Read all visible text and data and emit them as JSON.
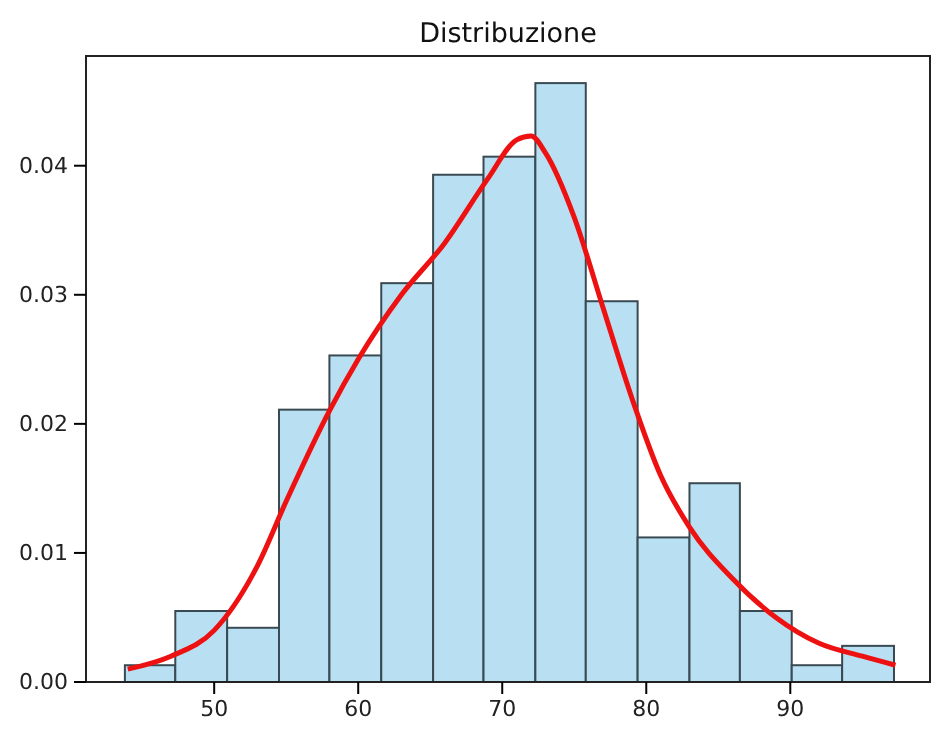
{
  "chart_data": {
    "type": "histogram",
    "title": "Distribuzione",
    "bins": [
      43.8,
      47.3,
      50.9,
      54.5,
      58.0,
      61.6,
      65.2,
      68.7,
      72.3,
      75.8,
      79.4,
      83.0,
      86.5,
      90.1,
      93.6,
      97.2
    ],
    "values": [
      0.0013,
      0.0055,
      0.0042,
      0.0211,
      0.0253,
      0.0309,
      0.0393,
      0.0407,
      0.0464,
      0.0295,
      0.0112,
      0.0154,
      0.0055,
      0.0013,
      0.0028
    ],
    "color": "#b8e0f2",
    "series": [
      {
        "type": "line",
        "color": "#ee1111",
        "x": [
          44,
          47,
          50,
          53,
          55,
          58,
          60,
          63,
          66,
          69,
          71,
          72,
          73,
          75,
          77,
          79,
          81,
          83,
          86,
          89,
          92,
          95,
          97.3
        ],
        "values": [
          0.001,
          0.002,
          0.004,
          0.009,
          0.014,
          0.021,
          0.025,
          0.03,
          0.034,
          0.039,
          0.042,
          0.0423,
          0.041,
          0.036,
          0.029,
          0.022,
          0.016,
          0.012,
          0.008,
          0.005,
          0.003,
          0.002,
          0.0013
        ]
      }
    ],
    "xlim": [
      41.1,
      99.7
    ],
    "xticks": [
      50,
      60,
      70,
      80,
      90
    ],
    "ylim": [
      0,
      0.0485
    ],
    "yticks": [
      {
        "value": 0,
        "label": "0.00"
      },
      {
        "value": 0.01,
        "label": "0.01"
      },
      {
        "value": 0.02,
        "label": "0.02"
      },
      {
        "value": 0.03,
        "label": "0.03"
      },
      {
        "value": 0.04,
        "label": "0.04"
      }
    ]
  }
}
